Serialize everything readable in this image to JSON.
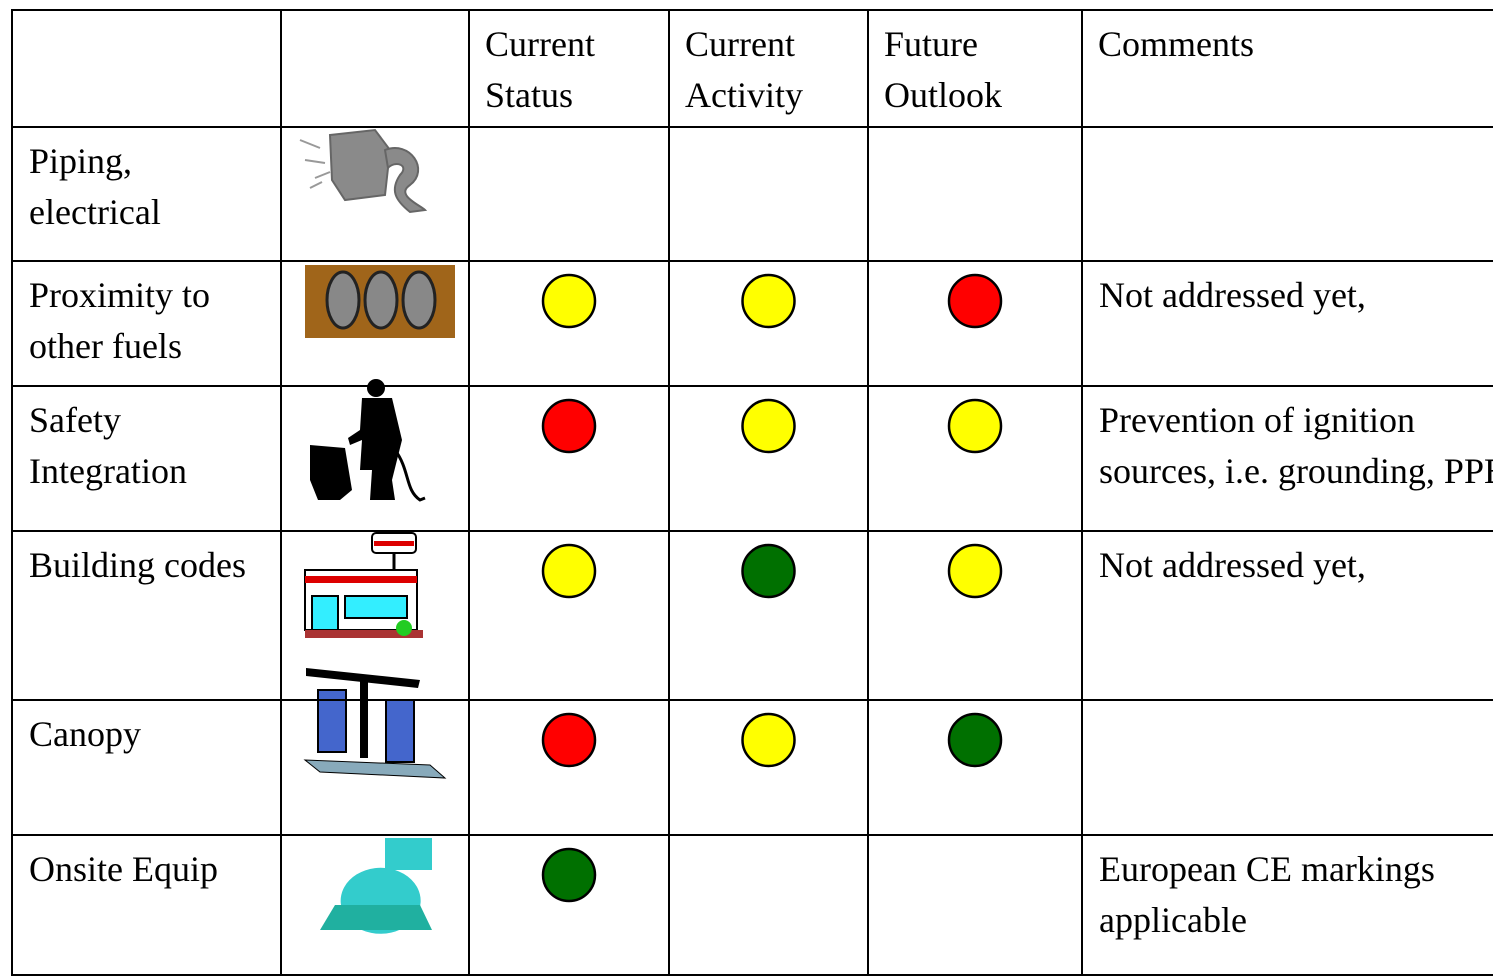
{
  "header": {
    "columns": [
      "Current Status",
      "Current Activity",
      "Future Outlook",
      "Comments"
    ]
  },
  "rows": [
    {
      "label": "Piping, electrical",
      "status": [
        null,
        null,
        null
      ]
    },
    {
      "label": "Proximity to other fuels",
      "status": [
        "#ffff00",
        "#ffff00",
        "#ff0000"
      ],
      "comment": "Not addressed yet,"
    },
    {
      "label": "Safety Integration",
      "status": [
        "#ff0000",
        "#ffff00",
        "#ffff00"
      ],
      "comment": "Prevention of ignition sources, i.e. grounding, PPE"
    },
    {
      "label": "Building codes",
      "status": [
        "#ffff00",
        "#007000",
        "#ffff00"
      ],
      "comment": "Not addressed yet,"
    },
    {
      "label": "Canopy",
      "status": [
        "#ff0000",
        "#ffff00",
        "#007000"
      ]
    },
    {
      "label": "Onsite Equip",
      "status": [
        "#007000",
        null,
        null
      ],
      "comment": "European CE markings applicable"
    }
  ]
}
